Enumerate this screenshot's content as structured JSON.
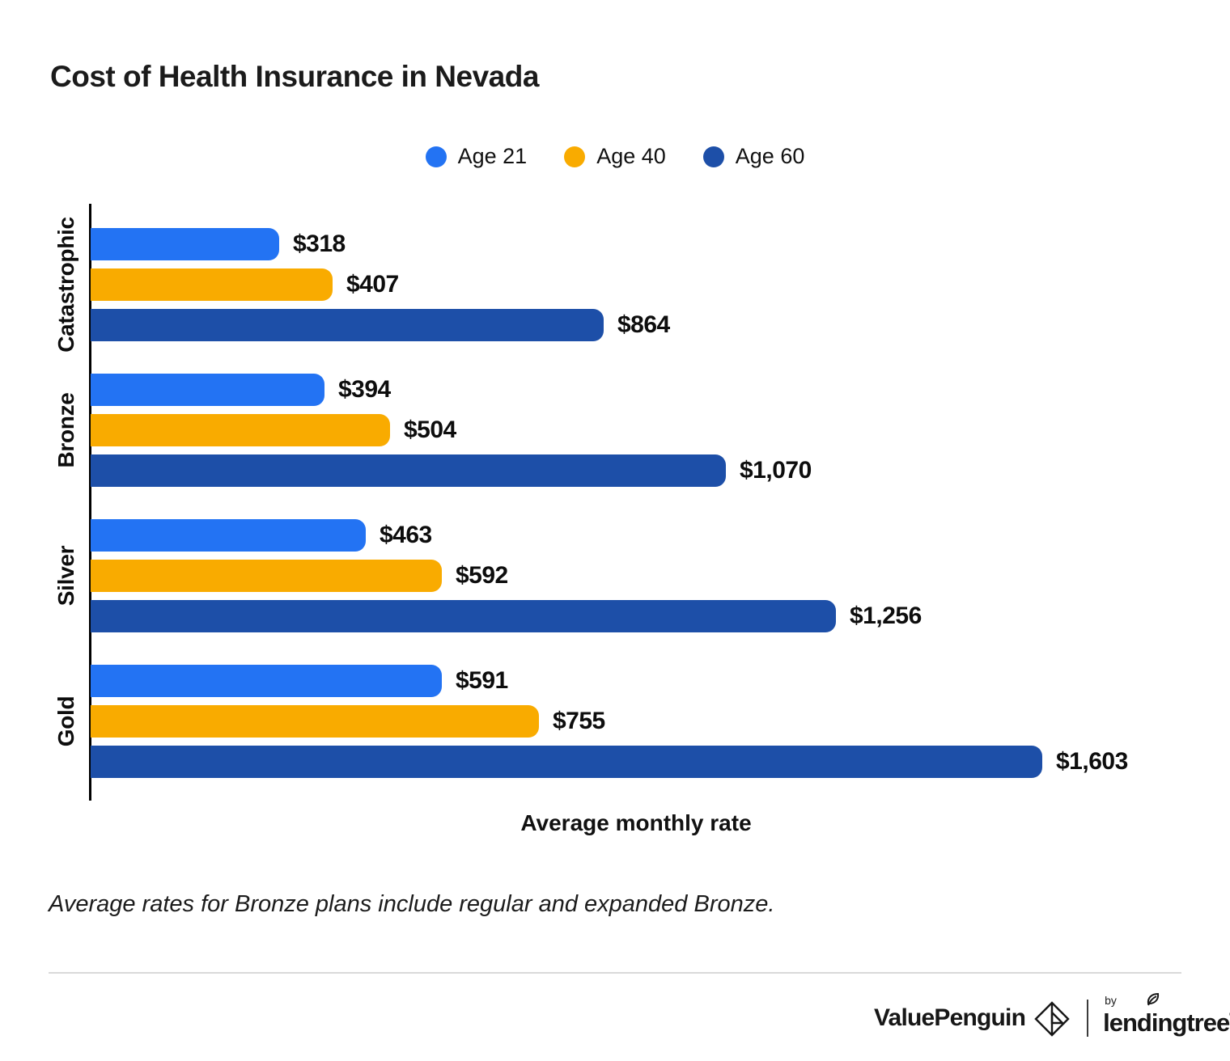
{
  "title": "Cost of Health Insurance in Nevada",
  "chart_data": {
    "type": "bar",
    "orientation": "horizontal",
    "title": "Cost of Health Insurance in Nevada",
    "xlabel": "Average monthly rate",
    "ylabel": "",
    "categories": [
      "Catastrophic",
      "Bronze",
      "Silver",
      "Gold"
    ],
    "series": [
      {
        "name": "Age 21",
        "color": "#2373F3",
        "values": [
          318,
          394,
          463,
          591
        ],
        "labels": [
          "$318",
          "$394",
          "$463",
          "$591"
        ]
      },
      {
        "name": "Age 40",
        "color": "#F9AB00",
        "values": [
          407,
          504,
          592,
          755
        ],
        "labels": [
          "$407",
          "$504",
          "$592",
          "$755"
        ]
      },
      {
        "name": "Age 60",
        "color": "#1D4FA8",
        "values": [
          864,
          1070,
          1256,
          1603
        ],
        "labels": [
          "$864",
          "$1,070",
          "$1,256",
          "$1,603"
        ]
      }
    ],
    "legend_position": "top",
    "xlim": [
      0,
      1700
    ],
    "grid": false,
    "value_labels_shown": true,
    "axis_ticks_shown": false
  },
  "footnote": "Average rates for Bronze plans include regular and expanded Bronze.",
  "footer": {
    "brand": "ValuePenguin",
    "by_label": "by",
    "partner": "lendingtree",
    "trademark": "®"
  }
}
